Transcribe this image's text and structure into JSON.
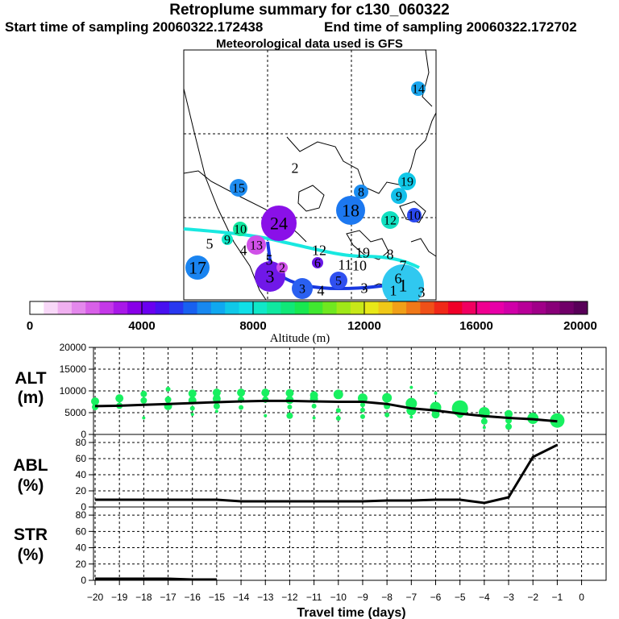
{
  "header": {
    "title": "Retroplume summary for c130_060322",
    "start_label": "Start time of sampling 20060322.172438",
    "end_label": "End time of sampling 20060322.172702",
    "met_label": "Meteorological data used is GFS"
  },
  "colorbar": {
    "label": "Altitude (m)",
    "ticks": [
      "0",
      "4000",
      "8000",
      "12000",
      "16000",
      "20000"
    ],
    "colors": [
      "#ffffff",
      "#f8d8f8",
      "#f0b0f0",
      "#e488ec",
      "#d860e8",
      "#c438e8",
      "#a818e8",
      "#8800e8",
      "#6a00f0",
      "#4810f0",
      "#2838f0",
      "#1860f0",
      "#1888f0",
      "#10a8f0",
      "#10c8e8",
      "#10e0e8",
      "#10e8c8",
      "#10e8a0",
      "#10e878",
      "#18e850",
      "#40e830",
      "#70e820",
      "#a0e818",
      "#c8e818",
      "#e8e818",
      "#f0c818",
      "#f0a018",
      "#f07818",
      "#f05018",
      "#f02818",
      "#f00028",
      "#f00060",
      "#f00090",
      "#e800a8",
      "#d000a8",
      "#b80098",
      "#a00088",
      "#880078",
      "#700068",
      "#580058"
    ]
  },
  "map": {
    "track_color_1": "#18e8e0",
    "track_color_2": "#1838e0",
    "markers": [
      {
        "label": "14",
        "color": "#1aa6ee"
      },
      {
        "label": "2",
        "color": "none"
      },
      {
        "label": "15",
        "color": "#1e8cf0"
      },
      {
        "label": "19",
        "color": "#10c8e8"
      },
      {
        "label": "8",
        "color": "#1a8cf0"
      },
      {
        "label": "9",
        "color": "#14c0ea"
      },
      {
        "label": "18",
        "color": "#1c78f0"
      },
      {
        "label": "12",
        "color": "#10e0c0"
      },
      {
        "label": "10",
        "color": "#2a48f0"
      },
      {
        "label": "17",
        "color": "#1a84f0"
      },
      {
        "label": "24",
        "color": "#8a10e8"
      },
      {
        "label": "3",
        "color": "#7018e8"
      },
      {
        "label": "6",
        "color": "#6a18e8"
      },
      {
        "label": "5",
        "color": "#3050f0"
      },
      {
        "label": "3",
        "color": "#2a60f0"
      },
      {
        "label": "1",
        "color": "#30c8f0"
      },
      {
        "label": "13",
        "color": "#d050e8"
      },
      {
        "label": "10",
        "color": "#10e8a0"
      },
      {
        "label": "9",
        "color": "#10e8c8"
      },
      {
        "label": "5",
        "color": "none"
      },
      {
        "label": "4",
        "color": "none"
      },
      {
        "label": "2",
        "color": "#d050e8"
      },
      {
        "label": "12",
        "color": "none"
      },
      {
        "label": "11",
        "color": "none"
      },
      {
        "label": "10",
        "color": "none"
      },
      {
        "label": "8",
        "color": "none"
      },
      {
        "label": "19",
        "color": "none"
      },
      {
        "label": "6",
        "color": "none"
      },
      {
        "label": "7",
        "color": "none"
      },
      {
        "label": "3",
        "color": "none"
      },
      {
        "label": "1",
        "color": "none"
      },
      {
        "label": "5",
        "color": "none"
      },
      {
        "label": "4",
        "color": "none"
      },
      {
        "label": "3",
        "color": "none"
      }
    ]
  },
  "chart_data": [
    {
      "type": "line",
      "panel": "ALT",
      "ylabel_1": "ALT",
      "ylabel_2": "(m)",
      "ylim": [
        0,
        20000
      ],
      "yticks": [
        "0",
        "5000",
        "10000",
        "15000",
        "20000"
      ],
      "x": [
        -20,
        -19,
        -18,
        -17,
        -16,
        -15,
        -14,
        -13,
        -12,
        -11,
        -10,
        -9,
        -8,
        -7,
        -6,
        -5,
        -4,
        -3,
        -2,
        -1
      ],
      "values": [
        6500,
        6600,
        6800,
        7000,
        7200,
        7400,
        7600,
        7700,
        7700,
        7600,
        7500,
        7500,
        7000,
        6000,
        5500,
        4800,
        4200,
        3800,
        3500,
        3000
      ],
      "scatter": [
        {
          "x": -20,
          "y": 7600,
          "r": 5
        },
        {
          "x": -20,
          "y": 6300,
          "r": 4
        },
        {
          "x": -19,
          "y": 8300,
          "r": 5
        },
        {
          "x": -19,
          "y": 6600,
          "r": 4
        },
        {
          "x": -18,
          "y": 9300,
          "r": 4
        },
        {
          "x": -18,
          "y": 7800,
          "r": 4
        },
        {
          "x": -18,
          "y": 3800,
          "r": 2
        },
        {
          "x": -17,
          "y": 10400,
          "r": 3
        },
        {
          "x": -17,
          "y": 8000,
          "r": 4
        },
        {
          "x": -17,
          "y": 6500,
          "r": 5
        },
        {
          "x": -16,
          "y": 9400,
          "r": 5
        },
        {
          "x": -16,
          "y": 7800,
          "r": 5
        },
        {
          "x": -16,
          "y": 6000,
          "r": 3
        },
        {
          "x": -16,
          "y": 4600,
          "r": 2
        },
        {
          "x": -15,
          "y": 9600,
          "r": 5
        },
        {
          "x": -15,
          "y": 8200,
          "r": 5
        },
        {
          "x": -15,
          "y": 6500,
          "r": 4
        },
        {
          "x": -15,
          "y": 5300,
          "r": 2
        },
        {
          "x": -14,
          "y": 9600,
          "r": 5
        },
        {
          "x": -14,
          "y": 8000,
          "r": 4
        },
        {
          "x": -14,
          "y": 6200,
          "r": 3
        },
        {
          "x": -13,
          "y": 9600,
          "r": 5
        },
        {
          "x": -13,
          "y": 8000,
          "r": 4
        },
        {
          "x": -13,
          "y": 4300,
          "r": 2
        },
        {
          "x": -12,
          "y": 9500,
          "r": 5
        },
        {
          "x": -12,
          "y": 7900,
          "r": 5
        },
        {
          "x": -12,
          "y": 6300,
          "r": 3
        },
        {
          "x": -12,
          "y": 4300,
          "r": 4
        },
        {
          "x": -11,
          "y": 9000,
          "r": 5
        },
        {
          "x": -11,
          "y": 8200,
          "r": 5
        },
        {
          "x": -11,
          "y": 6500,
          "r": 3
        },
        {
          "x": -11,
          "y": 3800,
          "r": 2
        },
        {
          "x": -10,
          "y": 9200,
          "r": 6
        },
        {
          "x": -10,
          "y": 5500,
          "r": 3
        },
        {
          "x": -10,
          "y": 3700,
          "r": 3
        },
        {
          "x": -9,
          "y": 8300,
          "r": 6
        },
        {
          "x": -9,
          "y": 6800,
          "r": 3
        },
        {
          "x": -9,
          "y": 5600,
          "r": 3
        },
        {
          "x": -9,
          "y": 4100,
          "r": 3
        },
        {
          "x": -8,
          "y": 8400,
          "r": 6
        },
        {
          "x": -8,
          "y": 6500,
          "r": 4
        },
        {
          "x": -8,
          "y": 4500,
          "r": 3
        },
        {
          "x": -7,
          "y": 10800,
          "r": 2
        },
        {
          "x": -7,
          "y": 7100,
          "r": 7
        },
        {
          "x": -7,
          "y": 5500,
          "r": 6
        },
        {
          "x": -7,
          "y": 4000,
          "r": 2
        },
        {
          "x": -6,
          "y": 9500,
          "r": 2
        },
        {
          "x": -6,
          "y": 6200,
          "r": 7
        },
        {
          "x": -6,
          "y": 4600,
          "r": 5
        },
        {
          "x": -5,
          "y": 6000,
          "r": 10
        },
        {
          "x": -5,
          "y": 4500,
          "r": 4
        },
        {
          "x": -4,
          "y": 5000,
          "r": 7
        },
        {
          "x": -4,
          "y": 3000,
          "r": 4
        },
        {
          "x": -4,
          "y": 1600,
          "r": 2
        },
        {
          "x": -3,
          "y": 4700,
          "r": 5
        },
        {
          "x": -3,
          "y": 3200,
          "r": 4
        },
        {
          "x": -3,
          "y": 1800,
          "r": 4
        },
        {
          "x": -2,
          "y": 3700,
          "r": 7
        },
        {
          "x": -1,
          "y": 3200,
          "r": 9
        }
      ]
    },
    {
      "type": "line",
      "panel": "ABL",
      "ylabel_1": "ABL",
      "ylabel_2": "(%)",
      "ylim": [
        0,
        90
      ],
      "yticks": [
        "0",
        "20",
        "40",
        "60",
        "80"
      ],
      "x": [
        -20,
        -19,
        -18,
        -17,
        -16,
        -15,
        -14,
        -13,
        -12,
        -11,
        -10,
        -9,
        -8,
        -7,
        -6,
        -5,
        -4,
        -3,
        -2,
        -1
      ],
      "values": [
        9,
        9,
        9,
        9,
        9,
        9,
        7,
        7,
        7,
        7,
        7,
        7,
        8,
        8,
        9,
        9,
        5,
        12,
        62,
        77
      ]
    },
    {
      "type": "line",
      "panel": "STR",
      "ylabel_1": "STR",
      "ylabel_2": "(%)",
      "ylim": [
        0,
        90
      ],
      "yticks": [
        "0",
        "20",
        "40",
        "60",
        "80"
      ],
      "x": [
        -20,
        -19,
        -18,
        -17,
        -16,
        -15
      ],
      "values": [
        2,
        2,
        2,
        2,
        1,
        1
      ]
    }
  ],
  "xaxis": {
    "title": "Travel time (days)",
    "ticks": [
      "−20",
      "−19",
      "−18",
      "−17",
      "−16",
      "−15",
      "−14",
      "−13",
      "−12",
      "−11",
      "−10",
      "−9",
      "−8",
      "−7",
      "−6",
      "−5",
      "−4",
      "−3",
      "−2",
      "−1",
      "0"
    ]
  }
}
